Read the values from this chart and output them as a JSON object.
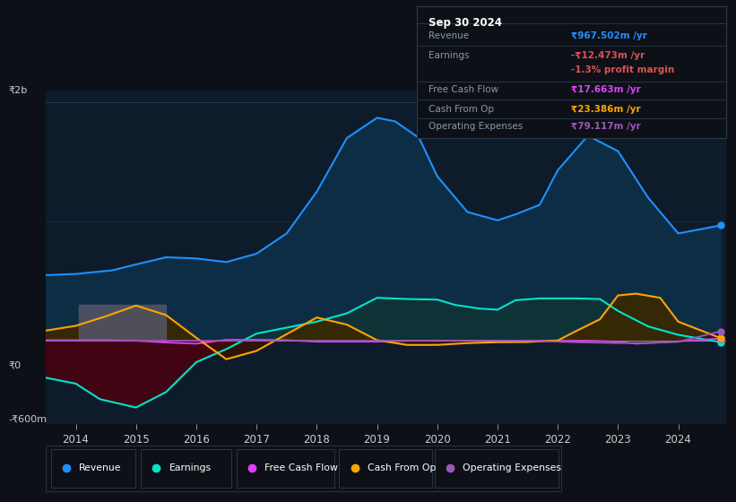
{
  "background_color": "#0d1117",
  "plot_bg_color": "#0d1b2a",
  "ylabel_top": "₹2b",
  "ylabel_zero": "₹0",
  "ylabel_bottom": "-₹600m",
  "x_labels": [
    "2014",
    "2015",
    "2016",
    "2017",
    "2018",
    "2019",
    "2020",
    "2021",
    "2022",
    "2023",
    "2024"
  ],
  "x_ticks": [
    2014,
    2015,
    2016,
    2017,
    2018,
    2019,
    2020,
    2021,
    2022,
    2023,
    2024
  ],
  "ylim": [
    -700,
    2100
  ],
  "xlim": [
    2013.5,
    2024.8
  ],
  "zero_y": 0,
  "legend_items": [
    "Revenue",
    "Earnings",
    "Free Cash Flow",
    "Cash From Op",
    "Operating Expenses"
  ],
  "legend_colors": [
    "#1e90ff",
    "#00e5cc",
    "#e040fb",
    "#ffa500",
    "#9b59b6"
  ],
  "info_box": {
    "title": "Sep 30 2024",
    "rows": [
      {
        "label": "Revenue",
        "value": "₹967.502m /yr",
        "value_color": "#1e90ff"
      },
      {
        "label": "Earnings",
        "value": "-₹12.473m /yr",
        "value_color": "#e05050"
      },
      {
        "label": "",
        "value": "-1.3% profit margin",
        "value_color": "#e05050"
      },
      {
        "label": "Free Cash Flow",
        "value": "₹17.663m /yr",
        "value_color": "#e040fb"
      },
      {
        "label": "Cash From Op",
        "value": "₹23.386m /yr",
        "value_color": "#ffa500"
      },
      {
        "label": "Operating Expenses",
        "value": "₹79.117m /yr",
        "value_color": "#9b59b6"
      }
    ]
  },
  "revenue_x": [
    2013.5,
    2014.0,
    2014.3,
    2014.6,
    2015.0,
    2015.5,
    2016.0,
    2016.5,
    2017.0,
    2017.5,
    2018.0,
    2018.5,
    2019.0,
    2019.3,
    2019.7,
    2020.0,
    2020.5,
    2021.0,
    2021.3,
    2021.7,
    2022.0,
    2022.5,
    2023.0,
    2023.5,
    2024.0,
    2024.7
  ],
  "revenue_y": [
    550,
    560,
    575,
    590,
    640,
    700,
    690,
    660,
    730,
    900,
    1250,
    1700,
    1870,
    1840,
    1700,
    1380,
    1080,
    1010,
    1060,
    1140,
    1430,
    1720,
    1590,
    1200,
    900,
    967
  ],
  "earnings_x": [
    2013.5,
    2014.0,
    2014.4,
    2015.0,
    2015.5,
    2016.0,
    2016.5,
    2017.0,
    2017.5,
    2018.0,
    2018.5,
    2019.0,
    2019.5,
    2020.0,
    2020.3,
    2020.7,
    2021.0,
    2021.3,
    2021.7,
    2022.0,
    2022.3,
    2022.7,
    2023.0,
    2023.5,
    2024.0,
    2024.7
  ],
  "earnings_y": [
    -310,
    -360,
    -490,
    -560,
    -430,
    -180,
    -70,
    60,
    110,
    160,
    230,
    360,
    350,
    345,
    300,
    270,
    260,
    340,
    355,
    355,
    355,
    350,
    250,
    120,
    50,
    -12
  ],
  "cashop_x": [
    2013.5,
    2014.0,
    2014.5,
    2015.0,
    2015.5,
    2016.0,
    2016.5,
    2017.0,
    2017.5,
    2018.0,
    2018.5,
    2019.0,
    2019.5,
    2020.0,
    2020.5,
    2021.0,
    2021.5,
    2022.0,
    2022.3,
    2022.7,
    2023.0,
    2023.3,
    2023.7,
    2024.0,
    2024.7
  ],
  "cashop_y": [
    85,
    125,
    205,
    295,
    215,
    25,
    -155,
    -85,
    55,
    195,
    135,
    5,
    -35,
    -35,
    -20,
    -12,
    -10,
    2,
    80,
    180,
    380,
    395,
    360,
    160,
    23
  ],
  "fcf_x": [
    2013.5,
    2014.0,
    2014.5,
    2015.0,
    2015.5,
    2016.0,
    2016.5,
    2017.0,
    2017.5,
    2018.0,
    2018.5,
    2019.0,
    2019.5,
    2020.0,
    2020.5,
    2021.0,
    2021.5,
    2022.0,
    2022.5,
    2023.0,
    2023.3,
    2023.7,
    2024.0,
    2024.7
  ],
  "fcf_y": [
    5,
    5,
    5,
    0,
    -15,
    -25,
    8,
    8,
    5,
    -8,
    -8,
    -8,
    0,
    0,
    0,
    0,
    0,
    0,
    0,
    -8,
    -25,
    -15,
    -5,
    18
  ],
  "opex_x": [
    2013.5,
    2014.0,
    2014.5,
    2015.0,
    2015.5,
    2016.0,
    2016.5,
    2017.0,
    2017.5,
    2018.0,
    2018.5,
    2019.0,
    2019.5,
    2020.0,
    2020.5,
    2021.0,
    2021.5,
    2022.0,
    2022.5,
    2023.0,
    2023.5,
    2024.0,
    2024.7
  ],
  "opex_y": [
    0,
    0,
    0,
    0,
    0,
    0,
    0,
    0,
    0,
    0,
    0,
    0,
    0,
    0,
    0,
    0,
    0,
    -8,
    -15,
    -20,
    -18,
    -10,
    79
  ]
}
